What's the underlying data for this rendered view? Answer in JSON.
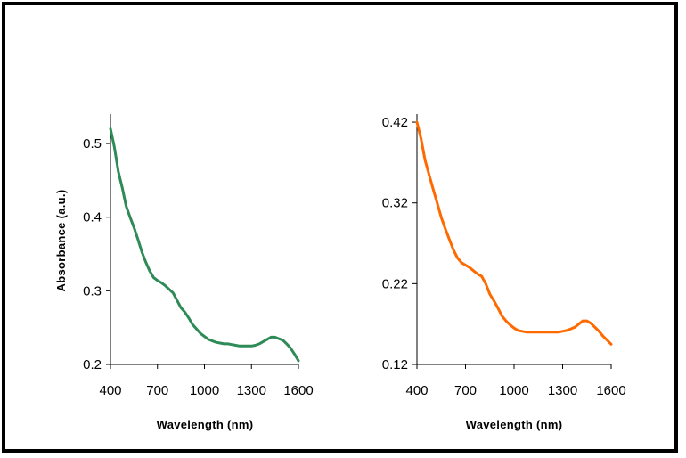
{
  "chart_data": [
    {
      "type": "line",
      "xlabel": "Wavelength (nm)",
      "ylabel": "Absorbance (a.u.)",
      "xlim": [
        400,
        1600
      ],
      "ylim": [
        0.2,
        0.54
      ],
      "xticks": [
        400,
        700,
        1000,
        1300,
        1600
      ],
      "yticks": [
        0.2,
        0.3,
        0.4,
        0.5
      ],
      "ytick_labels": [
        "0.2",
        "0.3",
        "0.4",
        "0.5"
      ],
      "color": "#2e8b57",
      "series": [
        {
          "x": [
            400,
            425,
            450,
            475,
            500,
            525,
            550,
            575,
            600,
            625,
            650,
            675,
            700,
            725,
            750,
            775,
            800,
            825,
            850,
            875,
            900,
            925,
            950,
            975,
            1000,
            1025,
            1050,
            1075,
            1100,
            1125,
            1150,
            1175,
            1200,
            1225,
            1250,
            1275,
            1300,
            1325,
            1350,
            1375,
            1400,
            1425,
            1450,
            1475,
            1500,
            1525,
            1550,
            1575,
            1600
          ],
          "y": [
            0.52,
            0.495,
            0.462,
            0.44,
            0.415,
            0.4,
            0.386,
            0.37,
            0.353,
            0.339,
            0.327,
            0.318,
            0.314,
            0.311,
            0.307,
            0.302,
            0.297,
            0.287,
            0.277,
            0.271,
            0.263,
            0.254,
            0.248,
            0.242,
            0.238,
            0.234,
            0.232,
            0.23,
            0.229,
            0.228,
            0.228,
            0.227,
            0.226,
            0.225,
            0.225,
            0.225,
            0.225,
            0.226,
            0.228,
            0.231,
            0.234,
            0.237,
            0.237,
            0.235,
            0.233,
            0.228,
            0.222,
            0.214,
            0.205
          ]
        }
      ]
    },
    {
      "type": "line",
      "xlabel": "Wavelength (nm)",
      "ylabel": "",
      "xlim": [
        400,
        1600
      ],
      "ylim": [
        0.12,
        0.43
      ],
      "xticks": [
        400,
        700,
        1000,
        1300,
        1600
      ],
      "yticks": [
        0.12,
        0.22,
        0.32,
        0.42
      ],
      "ytick_labels": [
        "0.12",
        "0.22",
        "0.32",
        "0.42"
      ],
      "color": "#ff6a00",
      "series": [
        {
          "x": [
            400,
            425,
            450,
            475,
            500,
            525,
            550,
            575,
            600,
            625,
            650,
            675,
            700,
            725,
            750,
            775,
            800,
            825,
            850,
            875,
            900,
            925,
            950,
            975,
            1000,
            1025,
            1050,
            1075,
            1100,
            1125,
            1150,
            1175,
            1200,
            1225,
            1250,
            1275,
            1300,
            1325,
            1350,
            1375,
            1400,
            1425,
            1450,
            1475,
            1500,
            1525,
            1550,
            1575,
            1600
          ],
          "y": [
            0.42,
            0.4,
            0.373,
            0.355,
            0.337,
            0.32,
            0.302,
            0.288,
            0.275,
            0.262,
            0.252,
            0.246,
            0.243,
            0.24,
            0.236,
            0.232,
            0.229,
            0.22,
            0.207,
            0.199,
            0.19,
            0.18,
            0.174,
            0.169,
            0.165,
            0.162,
            0.161,
            0.16,
            0.16,
            0.16,
            0.16,
            0.16,
            0.16,
            0.16,
            0.16,
            0.16,
            0.161,
            0.162,
            0.164,
            0.166,
            0.17,
            0.174,
            0.174,
            0.171,
            0.166,
            0.161,
            0.155,
            0.15,
            0.145
          ]
        }
      ]
    }
  ]
}
